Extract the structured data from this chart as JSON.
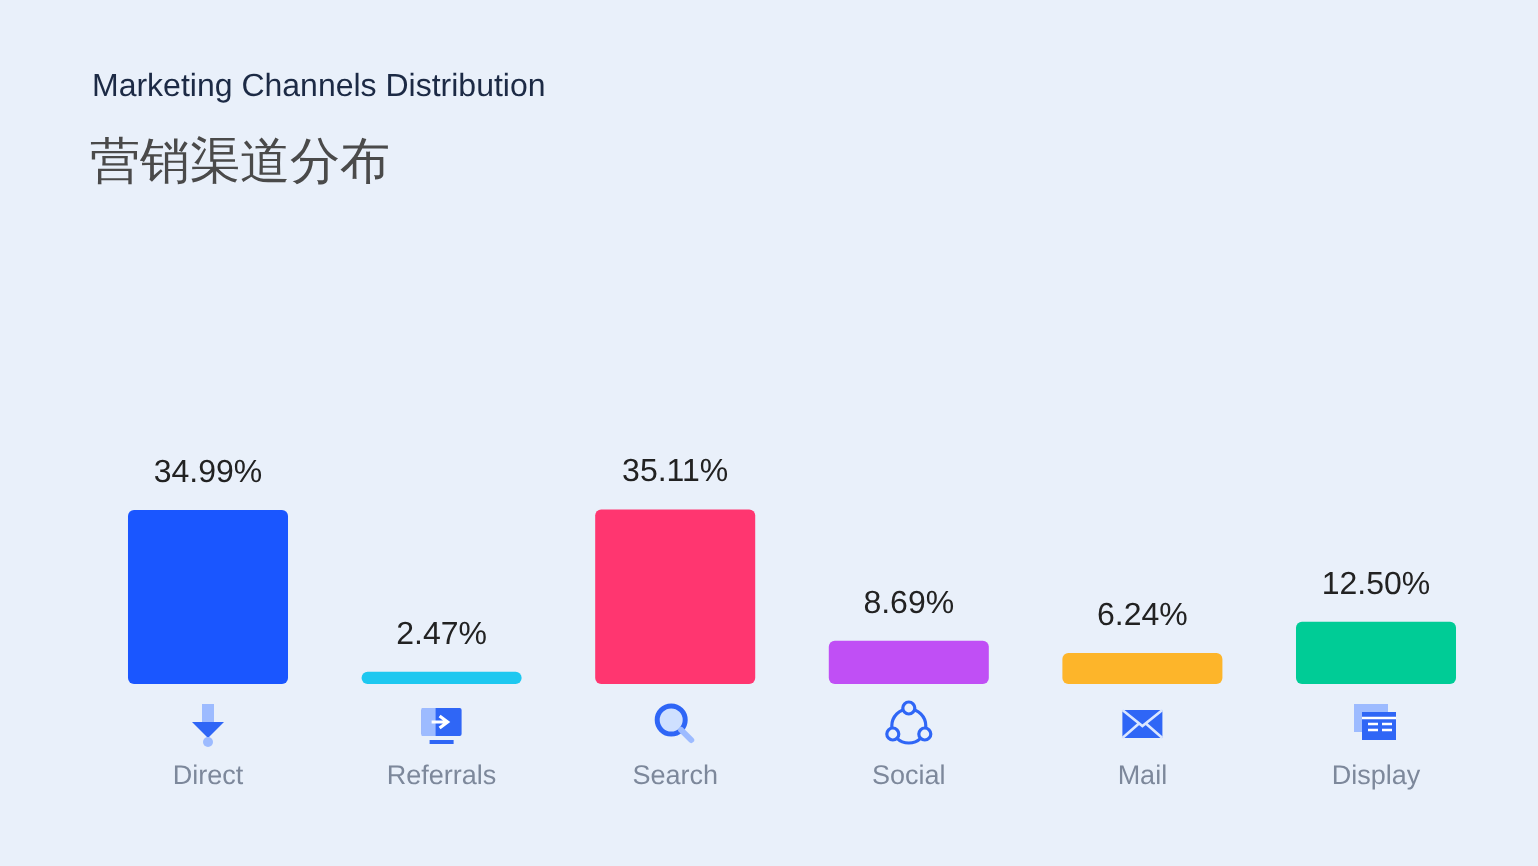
{
  "chart_data": {
    "type": "bar",
    "title": "Marketing Channels Distribution",
    "subtitle": "营销渠道分布",
    "categories": [
      "Direct",
      "Referrals",
      "Search",
      "Social",
      "Mail",
      "Display"
    ],
    "values": [
      34.99,
      2.47,
      35.11,
      8.69,
      6.24,
      12.5
    ],
    "colors": [
      "#1a56ff",
      "#1ec8f0",
      "#ff3670",
      "#c04ff5",
      "#fdb52a",
      "#00cc96"
    ],
    "value_labels": [
      "34.99%",
      "2.47%",
      "35.11%",
      "8.69%",
      "6.24%",
      "12.50%"
    ]
  }
}
